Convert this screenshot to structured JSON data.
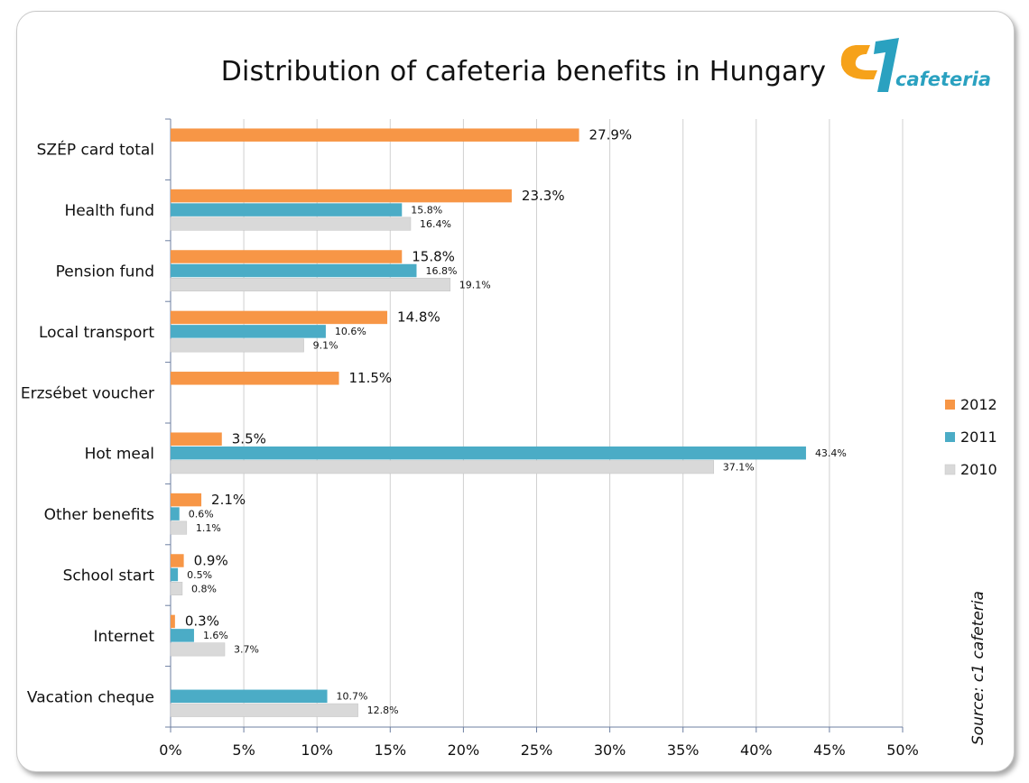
{
  "page": {
    "source": "Source: c1 cafeteria",
    "logo_text": "cafeteria"
  },
  "colors": {
    "2012": "#f79646",
    "2011": "#4bacc6",
    "2010": "#d9d9d9",
    "grid": "#d0d0d0",
    "axis": "#6d7fa1"
  },
  "chart_data": {
    "type": "bar",
    "orientation": "horizontal",
    "title": "Distribution of cafeteria benefits in Hungary",
    "xlabel": "",
    "ylabel": "",
    "xlim": [
      0,
      50
    ],
    "x_ticks": [
      "0%",
      "5%",
      "10%",
      "15%",
      "20%",
      "25%",
      "30%",
      "35%",
      "40%",
      "45%",
      "50%"
    ],
    "grid": true,
    "legend_position": "right",
    "categories": [
      "SZÉP card total",
      "Health fund",
      "Pension fund",
      "Local transport",
      "Erzsébet voucher",
      "Hot meal",
      "Other benefits",
      "School start",
      "Internet",
      "Vacation cheque"
    ],
    "series": [
      {
        "name": "2012",
        "color": "#f79646",
        "values": [
          27.9,
          23.3,
          15.8,
          14.8,
          11.5,
          3.5,
          2.1,
          0.9,
          0.3,
          null
        ],
        "labels": [
          "27.9%",
          "23.3%",
          "15.8%",
          "14.8%",
          "11.5%",
          "3.5%",
          "2.1%",
          "0.9%",
          "0.3%",
          ""
        ]
      },
      {
        "name": "2011",
        "color": "#4bacc6",
        "values": [
          null,
          15.8,
          16.8,
          10.6,
          null,
          43.4,
          0.6,
          0.5,
          1.6,
          10.7
        ],
        "labels": [
          "",
          "15.8%",
          "16.8%",
          "10.6%",
          "",
          "43.4%",
          "0.6%",
          "0.5%",
          "1.6%",
          "10.7%"
        ]
      },
      {
        "name": "2010",
        "color": "#d9d9d9",
        "values": [
          null,
          16.4,
          19.1,
          9.1,
          null,
          37.1,
          1.1,
          0.8,
          3.7,
          12.8
        ],
        "labels": [
          "",
          "16.4%",
          "19.1%",
          "9.1%",
          "",
          "37.1%",
          "1.1%",
          "0.8%",
          "3.7%",
          "12.8%"
        ]
      }
    ]
  }
}
